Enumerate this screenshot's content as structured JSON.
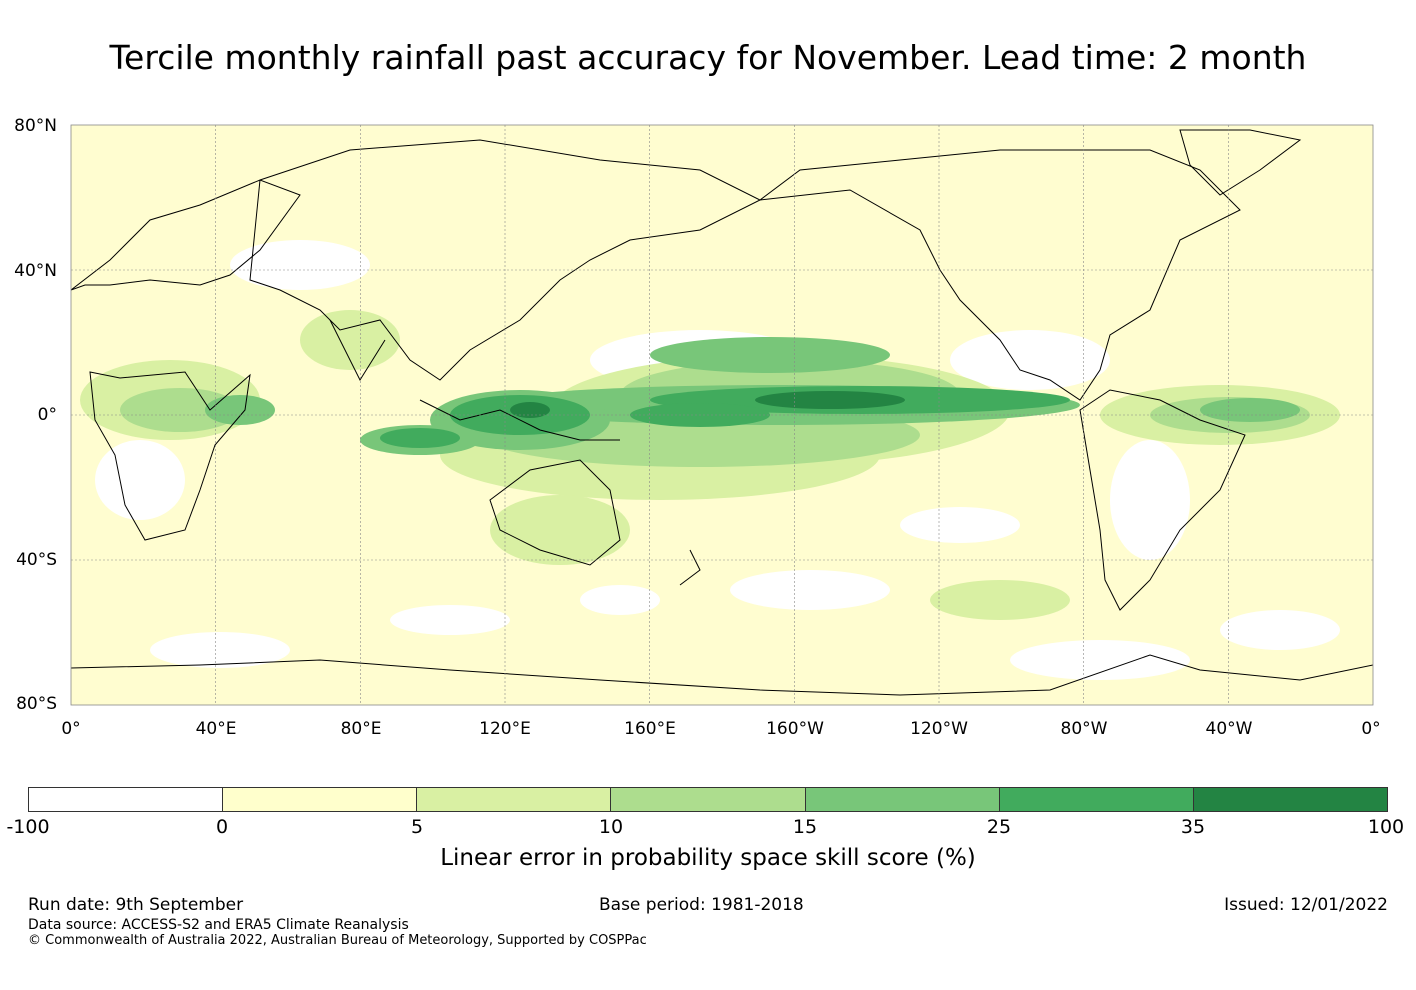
{
  "title": "Tercile monthly rainfall past accuracy for November. Lead time: 2 month",
  "map": {
    "lat_labels": [
      "80°N",
      "40°N",
      "0°",
      "40°S",
      "80°S"
    ],
    "lon_labels": [
      "0°",
      "40°E",
      "80°E",
      "120°E",
      "160°E",
      "160°W",
      "120°W",
      "80°W",
      "40°W",
      "0°"
    ],
    "lat_values": [
      80,
      40,
      0,
      -40,
      -80
    ],
    "lon_values": [
      0,
      40,
      80,
      120,
      160,
      200,
      240,
      280,
      320,
      360
    ],
    "background_color": "#fffdd0",
    "coastline_color": "#000000"
  },
  "colorbar": {
    "ticks": [
      "-100",
      "0",
      "5",
      "10",
      "15",
      "25",
      "35",
      "100"
    ],
    "colors": [
      "#ffffff",
      "#ffffcc",
      "#d9f0a3",
      "#addd8e",
      "#78c679",
      "#41ab5d",
      "#238443"
    ],
    "label": "Linear error in probability space skill score (%)"
  },
  "footer": {
    "run_date": "Run date: 9th September",
    "base_period": "Base period: 1981-2018",
    "issued": "Issued: 12/01/2022",
    "data_source": "Data source: ACCESS-S2 and ERA5 Climate Reanalysis",
    "copyright": "© Commonwealth of Australia 2022, Australian Bureau of Meteorology, Supported by COSPPac"
  }
}
